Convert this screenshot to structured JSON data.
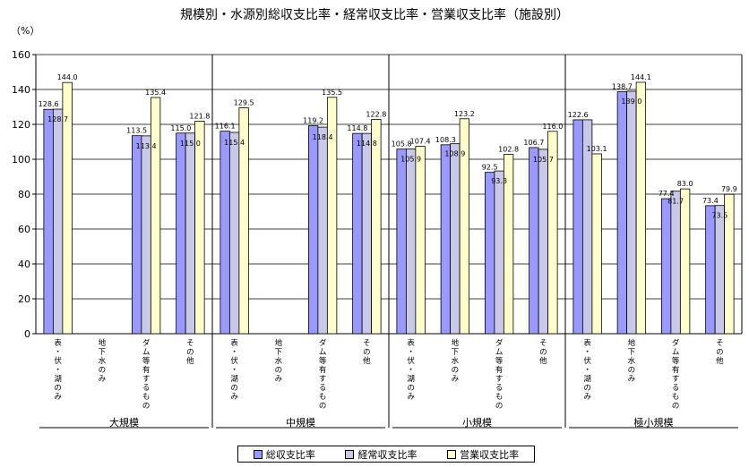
{
  "chart_data": {
    "type": "bar",
    "title": "規模別・水源別総収支比率・経常収支比率・営業収支比率（施設別）",
    "unit_label": "（%）",
    "ylim": [
      0,
      160
    ],
    "yticks": [
      0,
      20,
      40,
      60,
      80,
      100,
      120,
      140,
      160
    ],
    "grid": "horizontal",
    "legend_position": "bottom",
    "groups": [
      {
        "label": "大規模",
        "categories": [
          "表・伏・湖のみ",
          "地下水のみ",
          "ダム等有するもの",
          "その他"
        ]
      },
      {
        "label": "中規模",
        "categories": [
          "表・伏・湖のみ",
          "地下水のみ",
          "ダム等有するもの",
          "その他"
        ]
      },
      {
        "label": "小規模",
        "categories": [
          "表・伏・湖のみ",
          "地下水のみ",
          "ダム等有するもの",
          "その他"
        ]
      },
      {
        "label": "極小規模",
        "categories": [
          "表・伏・湖のみ",
          "地下水のみ",
          "ダム等有するもの",
          "その他"
        ]
      }
    ],
    "series": [
      {
        "name": "総収支比率",
        "color": "#9999ff",
        "values": [
          128.6,
          null,
          113.5,
          115.0,
          116.1,
          null,
          119.2,
          114.8,
          105.8,
          108.3,
          92.5,
          106.7,
          122.6,
          138.7,
          77.4,
          73.4
        ]
      },
      {
        "name": "経常収支比率",
        "color": "#c8c8e8",
        "values": [
          128.7,
          null,
          113.4,
          115.0,
          115.4,
          null,
          118.4,
          114.8,
          105.9,
          108.9,
          93.3,
          105.7,
          122.6,
          139.0,
          81.7,
          73.5
        ]
      },
      {
        "name": "営業収支比率",
        "color": "#ffffcc",
        "values": [
          144.0,
          null,
          135.4,
          121.8,
          129.5,
          null,
          135.5,
          122.8,
          107.4,
          123.2,
          102.8,
          116.0,
          103.1,
          144.1,
          83.0,
          79.9
        ]
      }
    ],
    "labels": [
      [
        "128.6",
        "128.7",
        "144.0"
      ],
      [
        "",
        "",
        ""
      ],
      [
        "113.5",
        "113.4",
        "135.4"
      ],
      [
        "115.0",
        "115.0",
        "121.8"
      ],
      [
        "116.1",
        "115.4",
        "129.5"
      ],
      [
        "",
        "",
        ""
      ],
      [
        "119.2",
        "118.4",
        "135.5"
      ],
      [
        "114.8",
        "114.8",
        "122.8"
      ],
      [
        "105.8",
        "105.9",
        "107.4"
      ],
      [
        "108.3",
        "108.9",
        "123.2"
      ],
      [
        "92.5",
        "93.3",
        "102.8"
      ],
      [
        "106.7",
        "105.7",
        "116.0"
      ],
      [
        "122.6",
        "",
        "103.1"
      ],
      [
        "138.7",
        "139.0",
        "144.1"
      ],
      [
        "77.4",
        "81.7",
        "83.0"
      ],
      [
        "73.4",
        "73.5",
        "79.9"
      ]
    ]
  }
}
